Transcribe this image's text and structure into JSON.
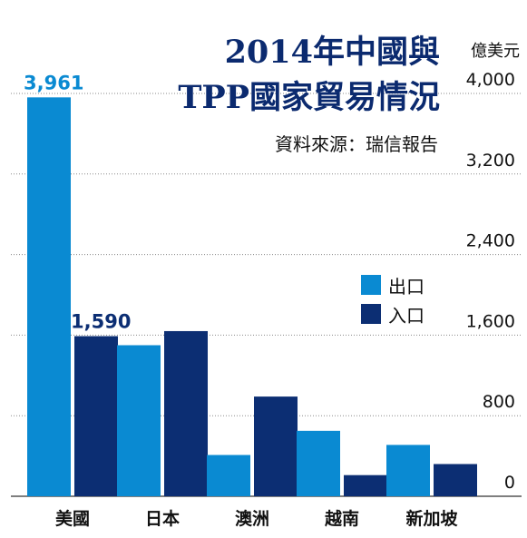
{
  "chart_data": {
    "type": "bar",
    "title_line1": "2014年中國與",
    "title_line2": "TPP國家貿易情況",
    "source": "資料來源：瑞信報告",
    "unit": "億美元",
    "categories": [
      "美國",
      "日本",
      "澳洲",
      "越南",
      "新加坡"
    ],
    "series": [
      {
        "name": "出口",
        "color": "#0a8ad2",
        "values": [
          3961,
          1500,
          410,
          650,
          510
        ]
      },
      {
        "name": "入口",
        "color": "#0c2e73",
        "values": [
          1590,
          1640,
          990,
          210,
          320
        ]
      }
    ],
    "ylim": [
      0,
      4000
    ],
    "yticks": [
      0,
      800,
      1600,
      2400,
      3200,
      4000
    ],
    "ytick_labels": [
      "0",
      "800",
      "1,600",
      "2,400",
      "3,200",
      "4,000"
    ],
    "data_labels": [
      {
        "series": 0,
        "category": 0,
        "text": "3,961",
        "color": "#0a8ad2"
      },
      {
        "series": 1,
        "category": 0,
        "text": "1,590",
        "color": "#0c2e73"
      }
    ],
    "grid": true,
    "legend_position": "right"
  }
}
